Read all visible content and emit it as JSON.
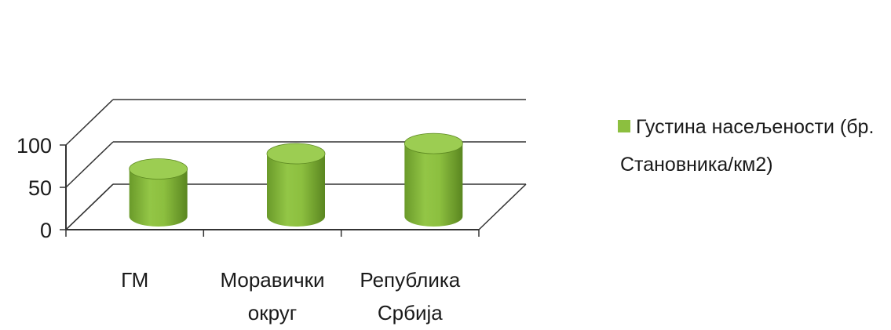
{
  "chart_data": {
    "type": "bar",
    "style": "3d-cylinder",
    "categories": [
      "ГМ",
      "Моравички округ",
      "Република Србија"
    ],
    "category_lines": [
      [
        "ГМ"
      ],
      [
        "Моравички",
        "округ"
      ],
      [
        "Република",
        "Србија"
      ]
    ],
    "series": [
      {
        "name": "Густина насељености (бр. Становника/км2)",
        "values": [
          56,
          74,
          86
        ]
      }
    ],
    "legend_lines": [
      "Густина насељености (бр.",
      "Становника/км2)"
    ],
    "yticks": [
      "0",
      "50",
      "100"
    ],
    "ylim": [
      0,
      100
    ],
    "grid": true,
    "legend_position": "right",
    "colors": {
      "bar": "#8cbf3f",
      "bar_dark": "#5e8a22",
      "bar_top": "#9ccd52",
      "grid": "#333333"
    }
  }
}
